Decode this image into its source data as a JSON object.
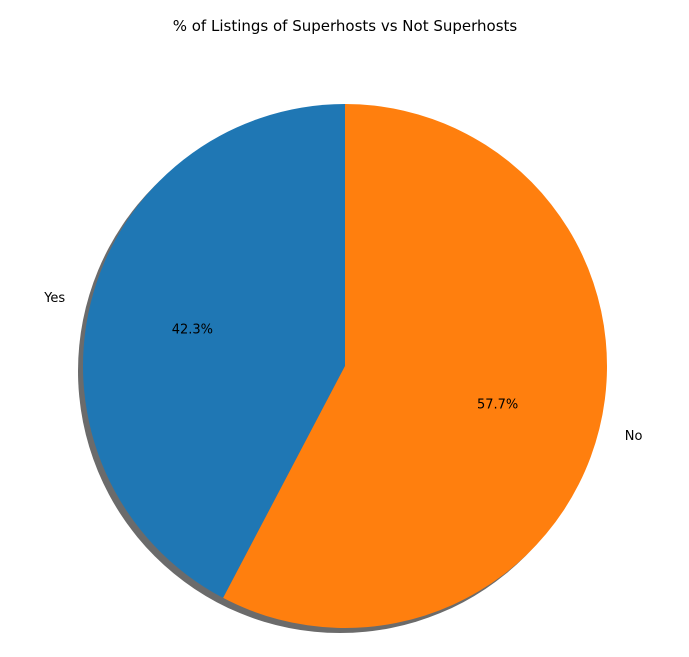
{
  "chart_data": {
    "type": "pie",
    "title": "% of Listings of Superhosts vs Not Superhosts",
    "shadow": true,
    "start_angle_deg": 90,
    "direction": "counterclockwise",
    "slices": [
      {
        "label": "Yes",
        "value": 42.3,
        "pct_label": "42.3%",
        "color": "#1f77b4"
      },
      {
        "label": "No",
        "value": 57.7,
        "pct_label": "57.7%",
        "color": "#ff7f0e"
      }
    ],
    "shadow_color": "#6b6b6b"
  }
}
